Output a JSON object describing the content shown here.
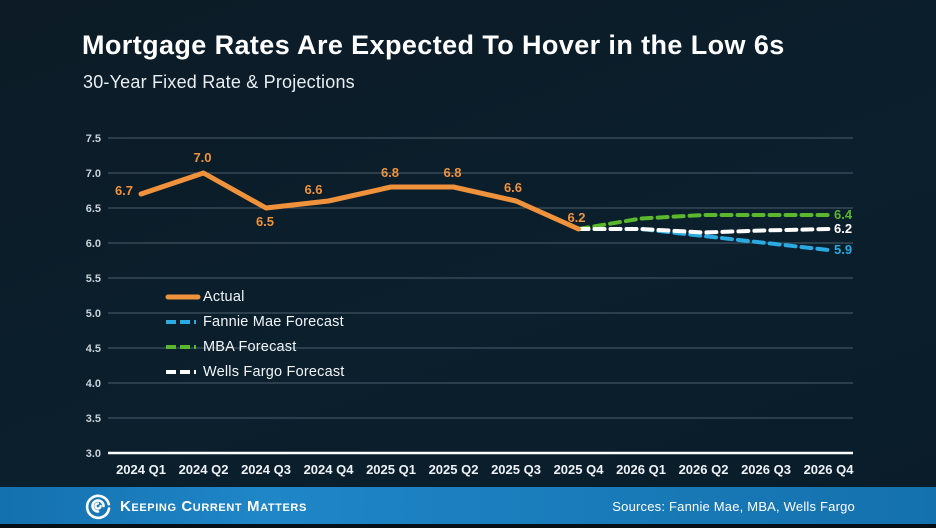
{
  "header": {
    "title": "Mortgage Rates Are Expected To Hover in the Low 6s",
    "subtitle": "30-Year Fixed Rate & Projections"
  },
  "colors": {
    "background": "#0b1e2c",
    "actual": "#f0923c",
    "fannie_mae": "#2badе0",
    "grid": "rgba(170,190,205,0.4)",
    "axis": "#ffffff",
    "footer_bar": "#1b7fc0"
  },
  "chart_data": {
    "type": "line",
    "title": "30-Year Fixed Rate & Projections",
    "categories": [
      "2024 Q1",
      "2024 Q2",
      "2024 Q3",
      "2024 Q4",
      "2025 Q1",
      "2025 Q2",
      "2025 Q3",
      "2025 Q4",
      "2026 Q1",
      "2026 Q2",
      "2026 Q3",
      "2026 Q4"
    ],
    "ylim": [
      3.0,
      7.5
    ],
    "yticks": [
      3.0,
      3.5,
      4.0,
      4.5,
      5.0,
      5.5,
      6.0,
      6.5,
      7.0,
      7.5
    ],
    "grid": true,
    "legend_position": "inside-left",
    "series": [
      {
        "name": "Actual",
        "color": "#f0923c",
        "style": "solid",
        "start_index": 0,
        "values": [
          6.7,
          7.0,
          6.5,
          6.6,
          6.8,
          6.8,
          6.6,
          6.2
        ],
        "point_labels": [
          "6.7",
          "7.0",
          "6.5",
          "6.6",
          "6.8",
          "6.8",
          "6.6",
          "6.2"
        ]
      },
      {
        "name": "Fannie Mae Forecast",
        "color": "#2baae1",
        "style": "dashed",
        "start_index": 7,
        "values": [
          6.2,
          6.2,
          6.1,
          6.0,
          5.9
        ],
        "end_label": "5.9"
      },
      {
        "name": "MBA Forecast",
        "color": "#5bb72e",
        "style": "dashed",
        "start_index": 7,
        "values": [
          6.2,
          6.35,
          6.4,
          6.4,
          6.4
        ],
        "end_label": "6.4"
      },
      {
        "name": "Wells Fargo Forecast",
        "color": "#ffffff",
        "style": "dashed",
        "start_index": 7,
        "values": [
          6.2,
          6.2,
          6.15,
          6.18,
          6.2
        ],
        "end_label": "6.2"
      }
    ]
  },
  "legend": {
    "items": [
      {
        "label": "Actual"
      },
      {
        "label": "Fannie Mae Forecast"
      },
      {
        "label": "MBA Forecast"
      },
      {
        "label": "Wells Fargo Forecast"
      }
    ]
  },
  "footer": {
    "brand": "Keeping Current Matters",
    "sources": "Sources: Fannie Mae, MBA, Wells Fargo"
  }
}
